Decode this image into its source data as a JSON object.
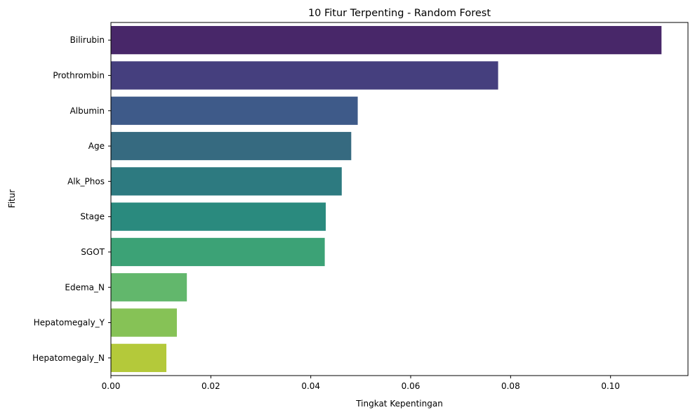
{
  "chart_data": {
    "type": "bar",
    "orientation": "horizontal",
    "title": "10 Fitur Terpenting - Random Forest",
    "xlabel": "Tingkat Kepentingan",
    "ylabel": "Fitur",
    "xlim": [
      0,
      0.1155
    ],
    "grid": false,
    "categories": [
      "Bilirubin",
      "Prothrombin",
      "Albumin",
      "Age",
      "Alk_Phos",
      "Stage",
      "SGOT",
      "Edema_N",
      "Hepatomegaly_Y",
      "Hepatomegaly_N"
    ],
    "values": [
      0.1102,
      0.0775,
      0.0494,
      0.0481,
      0.0462,
      0.043,
      0.0428,
      0.0152,
      0.0132,
      0.0111
    ],
    "colors": [
      "#482769",
      "#453f7e",
      "#3e5a89",
      "#366a80",
      "#2d7a80",
      "#2a8a7e",
      "#3ca276",
      "#62b76c",
      "#86c256",
      "#b4c93a"
    ],
    "x_ticks": [
      0.0,
      0.02,
      0.04,
      0.06,
      0.08,
      0.1
    ],
    "x_tick_labels": [
      "0.00",
      "0.02",
      "0.04",
      "0.06",
      "0.08",
      "0.10"
    ]
  }
}
